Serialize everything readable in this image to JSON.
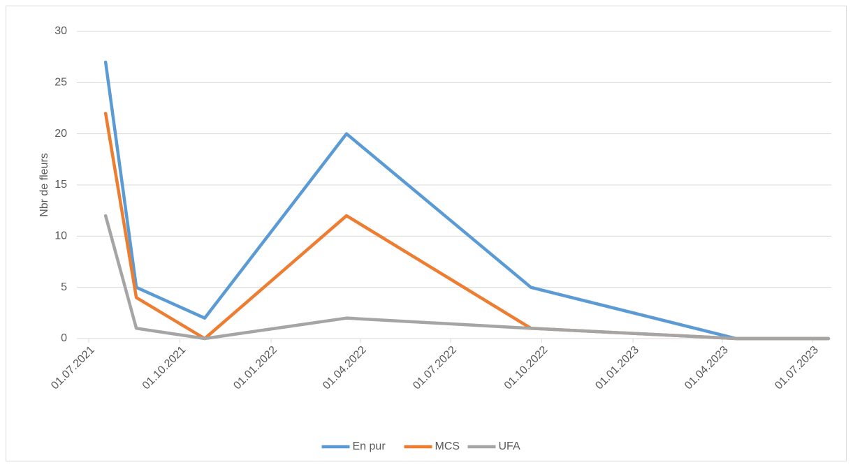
{
  "chart_data": {
    "type": "line",
    "y_label": "Nbr de fleurs",
    "x": [
      "18.07.2021",
      "18.08.2021",
      "26.10.2021",
      "18.03.2022",
      "20.09.2022",
      "15.04.2023",
      "17.07.2023"
    ],
    "series": [
      {
        "name": "En pur",
        "color": "#5b9bd5",
        "values": [
          27,
          5,
          2,
          20,
          5,
          0,
          0
        ]
      },
      {
        "name": "MCS",
        "color": "#ed7d31",
        "values": [
          22,
          4,
          0,
          12,
          1,
          0,
          0
        ]
      },
      {
        "name": "UFA",
        "color": "#a5a5a5",
        "values": [
          12,
          1,
          0,
          2,
          1,
          0,
          0
        ]
      }
    ],
    "xlim": [
      "19.06.2021",
      "20.07.2023"
    ],
    "xticks": [
      "01.07.2021",
      "01.10.2021",
      "01.01.2022",
      "01.04.2022",
      "01.07.2022",
      "01.10.2022",
      "01.01.2023",
      "01.04.2023",
      "01.07.2023"
    ],
    "ylim": [
      0,
      30
    ],
    "yticks": [
      0,
      5,
      10,
      15,
      20,
      25,
      30
    ],
    "grid": true,
    "legend": "bottom"
  }
}
